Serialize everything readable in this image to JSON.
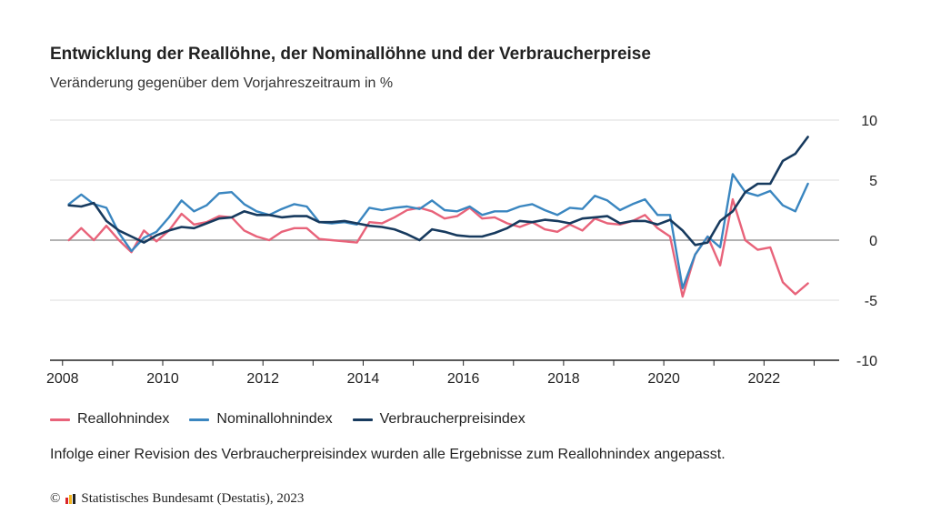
{
  "header": {
    "title": "Entwicklung der Reallöhne, der Nominallöhne und der Verbraucherpreise",
    "subtitle": "Veränderung gegenüber dem Vorjahreszeitraum in %"
  },
  "note": "Infolge einer Revision des Verbraucherpreisindex wurden alle Ergebnisse zum Reallohnindex angepasst.",
  "source": {
    "copyright_symbol": "©",
    "text": "Statistisches Bundesamt (Destatis), 2023"
  },
  "colors": {
    "real": "#e8637a",
    "nominal": "#3a86c0",
    "cpi": "#173a5e",
    "zero_line": "#999999",
    "grid": "#dddddd",
    "axis": "#222222",
    "logo_bars": [
      "#d9252b",
      "#f2b41d",
      "#222222"
    ]
  },
  "chart_data": {
    "type": "line",
    "title": "Entwicklung der Reallöhne, der Nominallöhne und der Verbraucherpreise",
    "subtitle": "Veränderung gegenüber dem Vorjahreszeitraum in %",
    "xlabel": "",
    "ylabel": "",
    "x_ticks": [
      "2008",
      "2010",
      "2012",
      "2014",
      "2016",
      "2018",
      "2020",
      "2022"
    ],
    "y_ticks": [
      "10",
      "5",
      "0",
      "-5",
      "-10"
    ],
    "xlim": [
      2007.75,
      2023.5
    ],
    "ylim": [
      -10,
      10
    ],
    "grid": true,
    "legend_position": "bottom",
    "x": [
      2008.125,
      2008.375,
      2008.625,
      2008.875,
      2009.125,
      2009.375,
      2009.625,
      2009.875,
      2010.125,
      2010.375,
      2010.625,
      2010.875,
      2011.125,
      2011.375,
      2011.625,
      2011.875,
      2012.125,
      2012.375,
      2012.625,
      2012.875,
      2013.125,
      2013.375,
      2013.625,
      2013.875,
      2014.125,
      2014.375,
      2014.625,
      2014.875,
      2015.125,
      2015.375,
      2015.625,
      2015.875,
      2016.125,
      2016.375,
      2016.625,
      2016.875,
      2017.125,
      2017.375,
      2017.625,
      2017.875,
      2018.125,
      2018.375,
      2018.625,
      2018.875,
      2019.125,
      2019.375,
      2019.625,
      2019.875,
      2020.125,
      2020.375,
      2020.625,
      2020.875,
      2021.125,
      2021.375,
      2021.625,
      2021.875,
      2022.125,
      2022.375,
      2022.625,
      2022.875
    ],
    "series": [
      {
        "name": "Reallohnindex",
        "color": "#e8637a",
        "values": [
          0.0,
          1.0,
          0.0,
          1.2,
          0.0,
          -1.0,
          0.8,
          -0.1,
          0.8,
          2.2,
          1.3,
          1.5,
          2.0,
          1.9,
          0.8,
          0.3,
          0.0,
          0.7,
          1.0,
          1.0,
          0.1,
          0.0,
          -0.1,
          -0.2,
          1.5,
          1.4,
          1.9,
          2.5,
          2.7,
          2.4,
          1.8,
          2.0,
          2.7,
          1.8,
          1.9,
          1.4,
          1.1,
          1.5,
          0.9,
          0.7,
          1.3,
          0.8,
          1.8,
          1.4,
          1.3,
          1.6,
          2.1,
          1.0,
          0.3,
          -4.7,
          -1.2,
          0.3,
          -2.1,
          3.4,
          0.0,
          -0.8,
          -0.6,
          -3.5,
          -4.5,
          -3.6
        ]
      },
      {
        "name": "Nominallohnindex",
        "color": "#3a86c0",
        "values": [
          3.0,
          3.8,
          3.0,
          2.7,
          0.6,
          -0.9,
          0.2,
          0.7,
          1.9,
          3.3,
          2.4,
          2.9,
          3.9,
          4.0,
          3.0,
          2.4,
          2.1,
          2.6,
          3.0,
          2.8,
          1.5,
          1.4,
          1.5,
          1.3,
          2.7,
          2.5,
          2.7,
          2.8,
          2.6,
          3.3,
          2.5,
          2.4,
          2.8,
          2.1,
          2.4,
          2.4,
          2.8,
          3.0,
          2.5,
          2.1,
          2.7,
          2.6,
          3.7,
          3.3,
          2.5,
          3.0,
          3.4,
          2.1,
          2.1,
          -4.0,
          -1.2,
          0.3,
          -0.6,
          5.5,
          4.0,
          3.7,
          4.1,
          2.9,
          2.4,
          4.7
        ]
      },
      {
        "name": "Verbraucherpreisindex",
        "color": "#173a5e",
        "values": [
          2.9,
          2.8,
          3.1,
          1.6,
          0.8,
          0.3,
          -0.2,
          0.4,
          0.8,
          1.1,
          1.0,
          1.4,
          1.8,
          1.9,
          2.4,
          2.1,
          2.1,
          1.9,
          2.0,
          2.0,
          1.5,
          1.5,
          1.6,
          1.4,
          1.2,
          1.1,
          0.9,
          0.5,
          0.0,
          0.9,
          0.7,
          0.4,
          0.3,
          0.3,
          0.6,
          1.0,
          1.6,
          1.5,
          1.7,
          1.6,
          1.4,
          1.8,
          1.9,
          2.0,
          1.4,
          1.6,
          1.6,
          1.3,
          1.7,
          0.8,
          -0.4,
          -0.2,
          1.6,
          2.4,
          4.0,
          4.7,
          4.7,
          6.6,
          7.2,
          8.6
        ]
      }
    ]
  }
}
